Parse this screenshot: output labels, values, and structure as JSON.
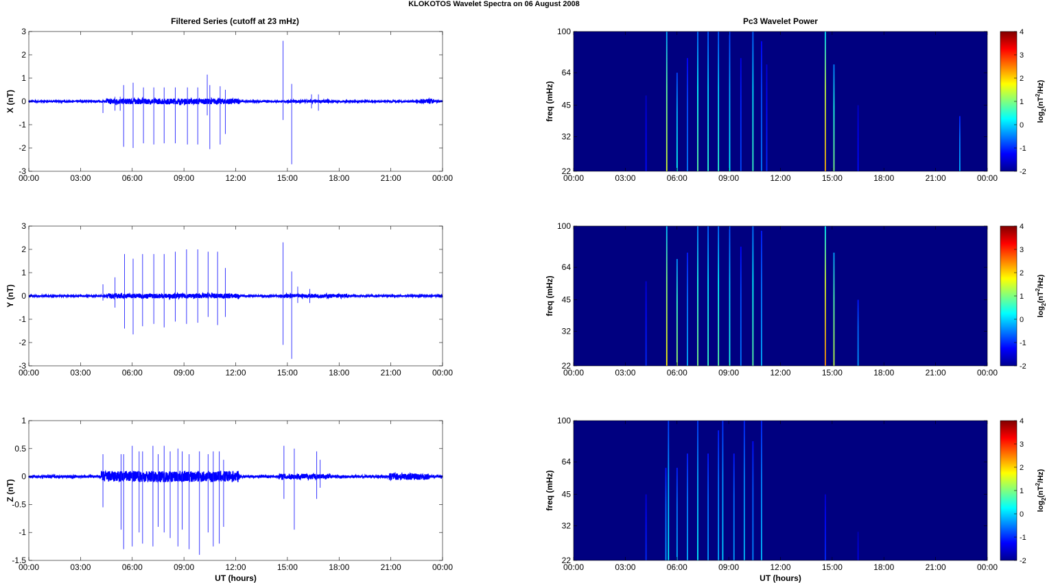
{
  "title": "KLOKOTOS Wavelet Spectra on 06 August    2008",
  "chart_data": [
    {
      "type": "line",
      "title": "Filtered Series (cutoff at 23 mHz)",
      "ylabel": "X (nT)",
      "xlabel": "",
      "ylim": [
        -3,
        3
      ],
      "yticks": [
        "3",
        "2",
        "1",
        "0",
        "-1",
        "-2",
        "-3"
      ],
      "ytick_values": [
        3,
        2,
        1,
        0,
        -1,
        -2,
        -3
      ],
      "xticks": [
        "00:00",
        "03:00",
        "06:00",
        "09:00",
        "12:00",
        "15:00",
        "18:00",
        "21:00",
        "00:00"
      ],
      "xlim_hours": [
        0,
        24
      ],
      "noise": [
        {
          "from": 0,
          "to": 24,
          "amp": 0.03
        },
        {
          "from": 4.5,
          "to": 12.2,
          "amp": 0.12
        },
        {
          "from": 15,
          "to": 17.5,
          "amp": 0.06
        },
        {
          "from": 22.7,
          "to": 23.5,
          "amp": 0.1
        }
      ],
      "spikes": [
        [
          4.3,
          0.1,
          -0.5
        ],
        [
          5.0,
          0.2,
          -0.4
        ],
        [
          5.3,
          0.2,
          -0.4
        ],
        [
          5.5,
          0.7,
          -1.95
        ],
        [
          6.05,
          0.8,
          -2.0
        ],
        [
          6.65,
          0.6,
          -1.8
        ],
        [
          7.25,
          0.6,
          -1.85
        ],
        [
          7.85,
          0.6,
          -1.8
        ],
        [
          8.5,
          0.6,
          -1.8
        ],
        [
          9.2,
          0.6,
          -1.85
        ],
        [
          9.8,
          0.6,
          -1.85
        ],
        [
          10.35,
          1.15,
          -0.6
        ],
        [
          10.5,
          0.7,
          -2.05
        ],
        [
          11.1,
          0.65,
          -1.85
        ],
        [
          11.4,
          0.5,
          -1.4
        ],
        [
          14.75,
          2.6,
          -0.8
        ],
        [
          15.25,
          0.75,
          -2.7
        ],
        [
          16.4,
          0.3,
          -0.3
        ],
        [
          16.8,
          0.3,
          -0.4
        ]
      ]
    },
    {
      "type": "line",
      "title": "",
      "ylabel": "Y (nT)",
      "xlabel": "",
      "ylim": [
        -3,
        3
      ],
      "yticks": [
        "3",
        "2",
        "1",
        "0",
        "-1",
        "-2",
        "-3"
      ],
      "ytick_values": [
        3,
        2,
        1,
        0,
        -1,
        -2,
        -3
      ],
      "xticks": [
        "00:00",
        "03:00",
        "06:00",
        "09:00",
        "12:00",
        "15:00",
        "18:00",
        "21:00",
        "00:00"
      ],
      "xlim_hours": [
        0,
        24
      ],
      "noise": [
        {
          "from": 0,
          "to": 24,
          "amp": 0.03
        },
        {
          "from": 4.5,
          "to": 12.2,
          "amp": 0.1
        },
        {
          "from": 14.6,
          "to": 18.5,
          "amp": 0.08
        }
      ],
      "spikes": [
        [
          4.3,
          0.5,
          -0.2
        ],
        [
          5.0,
          0.8,
          -0.5
        ],
        [
          5.55,
          1.8,
          -1.4
        ],
        [
          6.05,
          1.6,
          -1.65
        ],
        [
          6.6,
          1.8,
          -1.3
        ],
        [
          7.25,
          1.8,
          -1.2
        ],
        [
          7.85,
          1.8,
          -1.35
        ],
        [
          8.5,
          1.9,
          -1.1
        ],
        [
          9.15,
          2.0,
          -1.2
        ],
        [
          9.8,
          2.0,
          -1.15
        ],
        [
          10.4,
          1.9,
          -0.9
        ],
        [
          10.95,
          1.9,
          -1.25
        ],
        [
          11.4,
          1.2,
          -0.9
        ],
        [
          14.75,
          2.3,
          -2.1
        ],
        [
          15.25,
          1.05,
          -2.7
        ],
        [
          15.6,
          0.4,
          -0.3
        ],
        [
          16.3,
          0.3,
          -0.3
        ]
      ]
    },
    {
      "type": "line",
      "title": "",
      "ylabel": "Z (nT)",
      "xlabel": "UT (hours)",
      "ylim": [
        -1.5,
        1
      ],
      "yticks": [
        "1",
        "0.5",
        "0",
        "-0.5",
        "-1",
        "-1.5"
      ],
      "ytick_values": [
        1,
        0.5,
        0,
        -0.5,
        -1,
        -1.5
      ],
      "xticks": [
        "00:00",
        "03:00",
        "06:00",
        "09:00",
        "12:00",
        "15:00",
        "18:00",
        "21:00",
        "00:00"
      ],
      "xlim_hours": [
        0,
        24
      ],
      "noise": [
        {
          "from": 0,
          "to": 24,
          "amp": 0.02
        },
        {
          "from": 4.2,
          "to": 12.2,
          "amp": 0.1
        },
        {
          "from": 14.5,
          "to": 17.5,
          "amp": 0.05
        },
        {
          "from": 20.9,
          "to": 23.2,
          "amp": 0.06
        }
      ],
      "spikes": [
        [
          4.3,
          0.4,
          -0.55
        ],
        [
          5.35,
          0.4,
          -0.95
        ],
        [
          5.5,
          0.4,
          -1.3
        ],
        [
          6.0,
          0.55,
          -1.25
        ],
        [
          6.4,
          0.45,
          -1.0
        ],
        [
          6.6,
          0.45,
          -1.2
        ],
        [
          7.2,
          0.55,
          -1.25
        ],
        [
          7.5,
          0.4,
          -0.9
        ],
        [
          7.85,
          0.55,
          -1.0
        ],
        [
          8.2,
          0.45,
          -1.1
        ],
        [
          8.65,
          0.5,
          -1.25
        ],
        [
          8.9,
          0.45,
          -0.95
        ],
        [
          9.3,
          0.4,
          -1.3
        ],
        [
          9.9,
          0.45,
          -1.4
        ],
        [
          10.4,
          0.4,
          -1.0
        ],
        [
          10.7,
          0.45,
          -1.25
        ],
        [
          11.05,
          0.45,
          -1.2
        ],
        [
          11.3,
          0.3,
          -0.9
        ],
        [
          14.8,
          0.55,
          -0.4
        ],
        [
          15.4,
          0.5,
          -0.95
        ],
        [
          16.7,
          0.45,
          -0.4
        ],
        [
          16.9,
          0.3,
          -0.2
        ]
      ]
    },
    {
      "type": "heatmap",
      "title": "Pc3 Wavelet Power",
      "ylabel": "freq (mHz)",
      "xlabel": "",
      "yscale": "log",
      "ylim": [
        22,
        100
      ],
      "yticks": [
        "100",
        "64",
        "45",
        "32",
        "22"
      ],
      "ytick_values": [
        100,
        64,
        45,
        32,
        22
      ],
      "xticks": [
        "00:00",
        "03:00",
        "06:00",
        "09:00",
        "12:00",
        "15:00",
        "18:00",
        "21:00",
        "00:00"
      ],
      "colorbar_label": "log2(nT^2/Hz)",
      "clim": [
        -2,
        4
      ],
      "cticks": [
        "4",
        "3",
        "2",
        "1",
        "0",
        "-1",
        "-2"
      ],
      "background_power": -2,
      "stripes": [
        [
          4.2,
          -1.2,
          50
        ],
        [
          5.4,
          1.5,
          100
        ],
        [
          6.0,
          0.3,
          64
        ],
        [
          6.6,
          -0.5,
          75
        ],
        [
          7.2,
          0.8,
          100
        ],
        [
          7.8,
          0.5,
          100
        ],
        [
          8.4,
          0.5,
          100
        ],
        [
          9.05,
          0.2,
          100
        ],
        [
          9.7,
          -0.8,
          75
        ],
        [
          10.4,
          0.6,
          100
        ],
        [
          10.9,
          -0.5,
          90
        ],
        [
          11.2,
          -1.0,
          70
        ],
        [
          14.6,
          2.2,
          100
        ],
        [
          15.1,
          1.0,
          70
        ],
        [
          16.5,
          -1.2,
          45
        ],
        [
          22.4,
          -0.2,
          40
        ]
      ]
    },
    {
      "type": "heatmap",
      "title": "",
      "ylabel": "freq (mHz)",
      "xlabel": "",
      "yscale": "log",
      "ylim": [
        22,
        100
      ],
      "yticks": [
        "100",
        "64",
        "45",
        "32",
        "22"
      ],
      "ytick_values": [
        100,
        64,
        45,
        32,
        22
      ],
      "xticks": [
        "00:00",
        "03:00",
        "06:00",
        "09:00",
        "12:00",
        "15:00",
        "18:00",
        "21:00",
        "00:00"
      ],
      "colorbar_label": "log2(nT^2/Hz)",
      "clim": [
        -2,
        4
      ],
      "cticks": [
        "4",
        "3",
        "2",
        "1",
        "0",
        "-1",
        "-2"
      ],
      "background_power": -2,
      "stripes": [
        [
          4.2,
          -1.0,
          55
        ],
        [
          5.4,
          1.8,
          100
        ],
        [
          6.0,
          1.2,
          70
        ],
        [
          6.6,
          -0.2,
          75
        ],
        [
          7.2,
          1.0,
          100
        ],
        [
          7.8,
          0.6,
          100
        ],
        [
          8.4,
          0.8,
          100
        ],
        [
          9.05,
          0.4,
          100
        ],
        [
          9.7,
          -0.5,
          80
        ],
        [
          10.4,
          0.8,
          100
        ],
        [
          10.9,
          -0.2,
          95
        ],
        [
          14.6,
          2.4,
          100
        ],
        [
          15.1,
          1.4,
          75
        ],
        [
          16.5,
          -0.3,
          45
        ]
      ]
    },
    {
      "type": "heatmap",
      "title": "",
      "ylabel": "freq (mHz)",
      "xlabel": "UT (hours)",
      "yscale": "log",
      "ylim": [
        22,
        100
      ],
      "yticks": [
        "100",
        "64",
        "45",
        "32",
        "22"
      ],
      "ytick_values": [
        100,
        64,
        45,
        32,
        22
      ],
      "xticks": [
        "00:00",
        "03:00",
        "06:00",
        "09:00",
        "12:00",
        "15:00",
        "18:00",
        "21:00",
        "00:00"
      ],
      "colorbar_label": "log2(nT^2/Hz)",
      "clim": [
        -2,
        4
      ],
      "cticks": [
        "4",
        "3",
        "2",
        "1",
        "0",
        "-1",
        "-2"
      ],
      "background_power": -2,
      "stripes": [
        [
          4.2,
          -1.0,
          45
        ],
        [
          5.35,
          -0.3,
          60
        ],
        [
          5.5,
          0.2,
          100
        ],
        [
          6.0,
          -0.2,
          60
        ],
        [
          6.6,
          -0.2,
          70
        ],
        [
          7.2,
          0.2,
          100
        ],
        [
          7.8,
          -0.3,
          70
        ],
        [
          8.4,
          -0.2,
          90
        ],
        [
          8.65,
          0.0,
          100
        ],
        [
          9.3,
          -0.3,
          70
        ],
        [
          9.9,
          -0.1,
          100
        ],
        [
          10.4,
          -0.4,
          80
        ],
        [
          10.9,
          -0.1,
          100
        ],
        [
          14.6,
          -1.0,
          45
        ],
        [
          16.5,
          -1.4,
          30
        ]
      ]
    }
  ]
}
